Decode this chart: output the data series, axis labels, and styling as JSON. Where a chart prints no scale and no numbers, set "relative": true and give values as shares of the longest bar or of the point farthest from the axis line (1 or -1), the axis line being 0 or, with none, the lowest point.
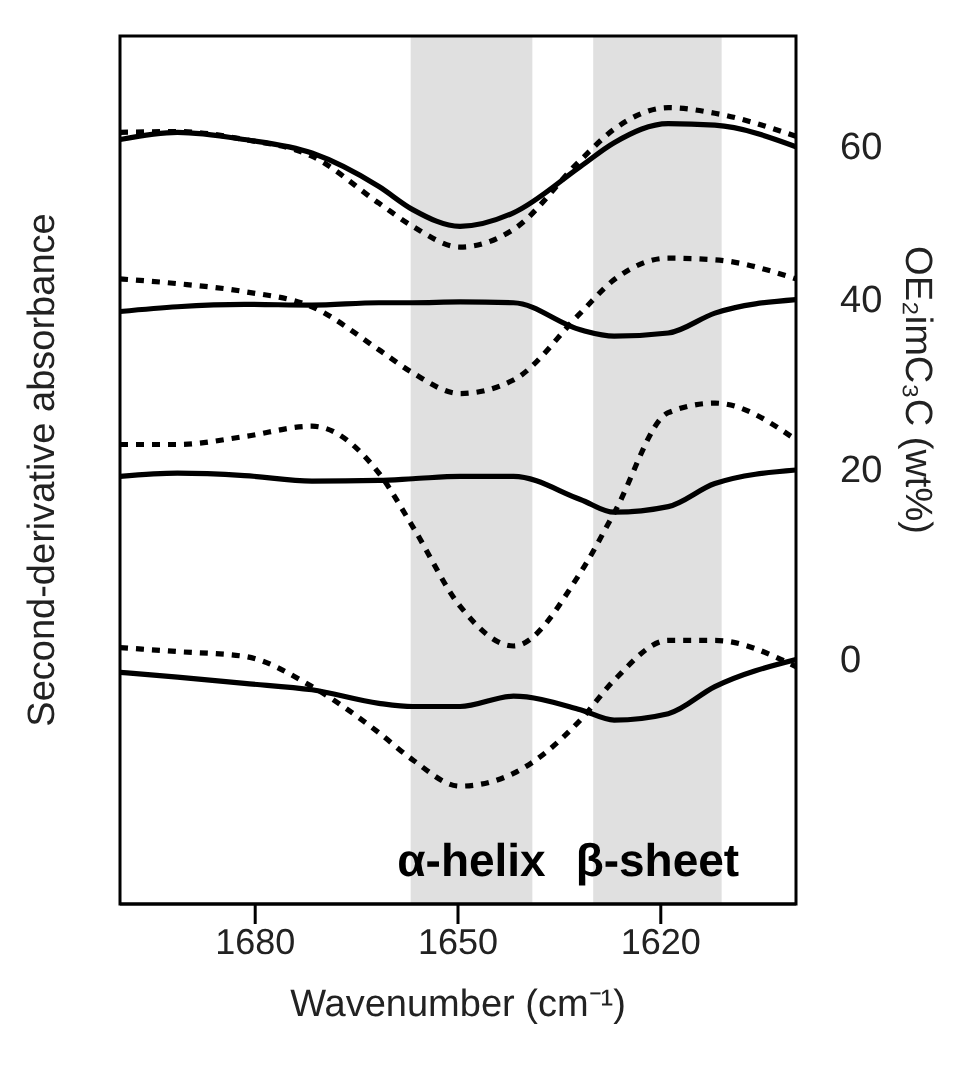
{
  "chart_data": {
    "type": "line",
    "relative": true,
    "xlabel": "Wavenumber (cm⁻¹)",
    "ylabel": "Second-derivative absorbance",
    "y2label": "OE₂imC₃C (wt%)",
    "xlim": [
      1700,
      1600
    ],
    "xticks": [
      1680,
      1650,
      1620
    ],
    "marker": "none",
    "x": [
      1700,
      1691.5,
      1681.6,
      1671.6,
      1661.7,
      1656.7,
      1649.7,
      1641.8,
      1631.9,
      1626.9,
      1618.9,
      1612,
      1600
    ],
    "bands": [
      {
        "axis": "x",
        "from": 1657,
        "to": 1639,
        "label": "α-helix",
        "color": "#e0e0e0"
      },
      {
        "axis": "x",
        "from": 1630,
        "to": 1611,
        "label": "β-sheet",
        "color": "#e0e0e0"
      }
    ],
    "series": [
      {
        "name": "60",
        "color": "#000000",
        "line_style": "solid",
        "values": [
          0.96,
          0.969,
          0.96,
          0.943,
          0.901,
          0.872,
          0.851,
          0.868,
          0.926,
          0.956,
          0.98,
          0.978,
          0.951
        ]
      },
      {
        "color": "#000000",
        "line_style": "dotted",
        "values": [
          0.969,
          0.97,
          0.96,
          0.939,
          0.88,
          0.851,
          0.825,
          0.847,
          0.934,
          0.973,
          1.0,
          0.993,
          0.964
        ]
      },
      {
        "name": "40",
        "color": "#000000",
        "line_style": "solid",
        "values": [
          0.744,
          0.75,
          0.753,
          0.752,
          0.755,
          0.755,
          0.756,
          0.755,
          0.721,
          0.713,
          0.717,
          0.742,
          0.759
        ]
      },
      {
        "color": "#000000",
        "line_style": "dotted",
        "values": [
          0.785,
          0.779,
          0.769,
          0.75,
          0.696,
          0.667,
          0.641,
          0.658,
          0.742,
          0.784,
          0.811,
          0.809,
          0.785
        ]
      },
      {
        "name": "20",
        "color": "#000000",
        "line_style": "solid",
        "values": [
          0.537,
          0.541,
          0.538,
          0.531,
          0.532,
          0.534,
          0.537,
          0.537,
          0.508,
          0.492,
          0.499,
          0.528,
          0.545
        ]
      },
      {
        "color": "#000000",
        "line_style": "dotted",
        "values": [
          0.577,
          0.577,
          0.587,
          0.6,
          0.541,
          0.474,
          0.374,
          0.324,
          0.416,
          0.491,
          0.617,
          0.629,
          0.583
        ]
      },
      {
        "name": "0",
        "color": "#000000",
        "line_style": "solid",
        "values": [
          0.291,
          0.285,
          0.277,
          0.269,
          0.252,
          0.248,
          0.248,
          0.261,
          0.244,
          0.231,
          0.239,
          0.273,
          0.307
        ]
      },
      {
        "color": "#000000",
        "line_style": "dotted",
        "values": [
          0.322,
          0.317,
          0.311,
          0.273,
          0.215,
          0.181,
          0.148,
          0.164,
          0.231,
          0.281,
          0.331,
          0.331,
          0.298
        ]
      }
    ]
  }
}
